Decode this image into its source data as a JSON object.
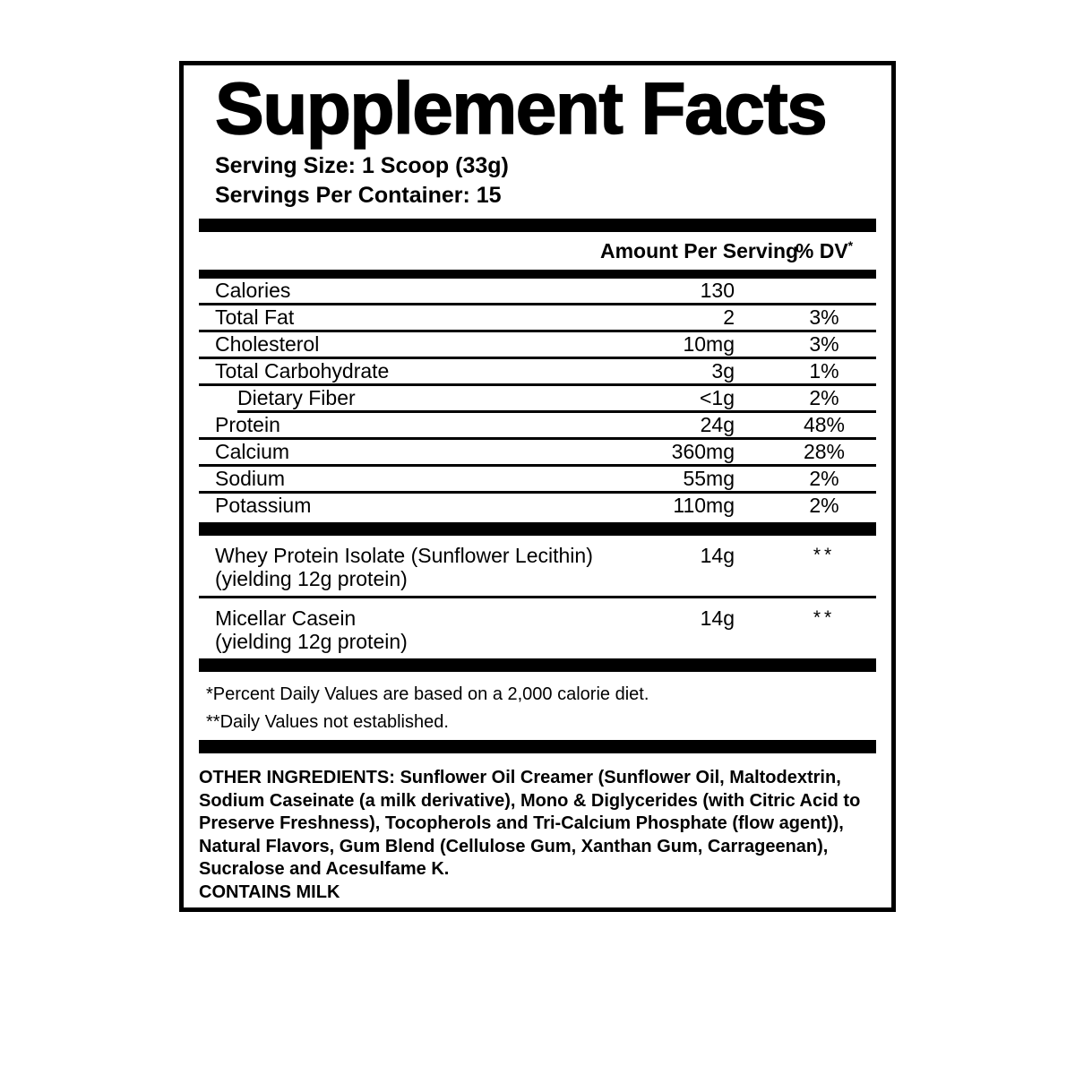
{
  "label": {
    "title": "Supplement Facts",
    "serving_size": "Serving Size: 1 Scoop (33g)",
    "servings_per_container": "Servings Per Container: 15",
    "header": {
      "amount": "Amount Per Serving",
      "dv": "% DV",
      "dv_note_symbol": "*"
    },
    "nutrients": [
      {
        "name": "Calories",
        "amount": "130",
        "dv": ""
      },
      {
        "name": "Total Fat",
        "amount": "2",
        "dv": "3%"
      },
      {
        "name": "Cholesterol",
        "amount": "10mg",
        "dv": "3%"
      },
      {
        "name": "Total Carbohydrate",
        "amount": "3g",
        "dv": "1%"
      },
      {
        "name": "Dietary Fiber",
        "amount": "<1g",
        "dv": "2%"
      },
      {
        "name": "Protein",
        "amount": "24g",
        "dv": "48%"
      },
      {
        "name": "Calcium",
        "amount": "360mg",
        "dv": "28%"
      },
      {
        "name": "Sodium",
        "amount": "55mg",
        "dv": "2%"
      },
      {
        "name": "Potassium",
        "amount": "110mg",
        "dv": "2%"
      }
    ],
    "blend_rows": [
      {
        "name": "Whey Protein Isolate (Sunflower Lecithin)",
        "yield_note": "(yielding 12g protein)",
        "amount": "14g",
        "dv": "**"
      },
      {
        "name": "Micellar Casein",
        "yield_note": "(yielding 12g protein)",
        "amount": "14g",
        "dv": "**"
      }
    ],
    "footnotes": [
      "*Percent Daily Values are based on a 2,000 calorie diet.",
      "**Daily Values not established."
    ],
    "other_ingredients": "OTHER INGREDIENTS:  Sunflower Oil Creamer (Sunflower Oil, Maltodextrin, Sodium Caseinate (a milk derivative), Mono & Diglycerides (with Citric Acid to Preserve Freshness), Tocopherols and Tri-Calcium Phosphate (flow agent)), Natural Flavors, Gum Blend (Cellulose Gum, Xanthan Gum, Carrageenan), Sucralose and Acesulfame K.",
    "allergen_statement": "CONTAINS MILK",
    "colors": {
      "text": "#000000",
      "background": "#ffffff"
    }
  }
}
